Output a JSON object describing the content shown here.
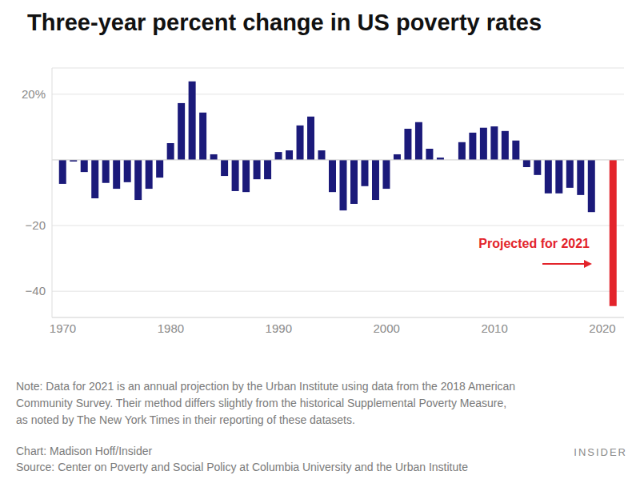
{
  "chart_data": {
    "type": "bar",
    "title": "Three-year percent change in US poverty rates",
    "x": [
      1970,
      1971,
      1972,
      1973,
      1974,
      1975,
      1976,
      1977,
      1978,
      1979,
      1980,
      1981,
      1982,
      1983,
      1984,
      1985,
      1986,
      1987,
      1988,
      1989,
      1990,
      1991,
      1992,
      1993,
      1994,
      1995,
      1996,
      1997,
      1998,
      1999,
      2000,
      2001,
      2002,
      2003,
      2004,
      2005,
      2006,
      2007,
      2008,
      2009,
      2010,
      2011,
      2012,
      2013,
      2014,
      2015,
      2016,
      2017,
      2018,
      2019,
      2020,
      2021
    ],
    "values": [
      -7.3,
      -0.5,
      -3.7,
      -11.7,
      -7,
      -8.8,
      -6.8,
      -12.2,
      -8.8,
      -5.4,
      5.1,
      17.3,
      23.9,
      14.4,
      1.7,
      -4.9,
      -9.5,
      -9.8,
      -5.9,
      -5.9,
      2.4,
      2.9,
      10.5,
      13.2,
      2.9,
      -9.8,
      -15.4,
      -13.4,
      -8,
      -12.2,
      -8.8,
      1.7,
      9.5,
      11.5,
      3.4,
      0.7,
      0,
      5.4,
      8.3,
      9.8,
      10.2,
      8.8,
      5.9,
      -2.2,
      -4.6,
      -10.2,
      -10.2,
      -8.5,
      -10.7,
      -15.9,
      null,
      -44.5
    ],
    "colors": [
      "#1b1a7a",
      "#1b1a7a",
      "#1b1a7a",
      "#1b1a7a",
      "#1b1a7a",
      "#1b1a7a",
      "#1b1a7a",
      "#1b1a7a",
      "#1b1a7a",
      "#1b1a7a",
      "#1b1a7a",
      "#1b1a7a",
      "#1b1a7a",
      "#1b1a7a",
      "#1b1a7a",
      "#1b1a7a",
      "#1b1a7a",
      "#1b1a7a",
      "#1b1a7a",
      "#1b1a7a",
      "#1b1a7a",
      "#1b1a7a",
      "#1b1a7a",
      "#1b1a7a",
      "#1b1a7a",
      "#1b1a7a",
      "#1b1a7a",
      "#1b1a7a",
      "#1b1a7a",
      "#1b1a7a",
      "#1b1a7a",
      "#1b1a7a",
      "#1b1a7a",
      "#1b1a7a",
      "#1b1a7a",
      "#1b1a7a",
      "#1b1a7a",
      "#1b1a7a",
      "#1b1a7a",
      "#1b1a7a",
      "#1b1a7a",
      "#1b1a7a",
      "#1b1a7a",
      "#1b1a7a",
      "#1b1a7a",
      "#1b1a7a",
      "#1b1a7a",
      "#1b1a7a",
      "#1b1a7a",
      "#1b1a7a",
      "#1b1a7a",
      "#e3242b"
    ],
    "xlim": [
      1969,
      2022
    ],
    "xticks": [
      1970,
      1980,
      1990,
      2000,
      2010,
      2020
    ],
    "ylim": [
      -48,
      28
    ],
    "yticks": [
      {
        "value": 20,
        "label": "20%"
      },
      {
        "value": -20,
        "label": "−20"
      },
      {
        "value": -40,
        "label": "−40"
      }
    ],
    "grid": true,
    "annotation": "Projected for 2021",
    "notes": [
      "Note: Data for 2021 is an annual projection by the Urban Institute using data from the 2018 American",
      "Community Survey. Their method differs slightly from the historical Supplemental Poverty Measure,",
      "as noted by The New York Times in their reporting of these datasets."
    ],
    "credit": "Chart: Madison Hoff/Insider",
    "source": "Source:  Center on Poverty and Social Policy at Columbia University and the Urban Institute",
    "brand": "INSIDER"
  }
}
